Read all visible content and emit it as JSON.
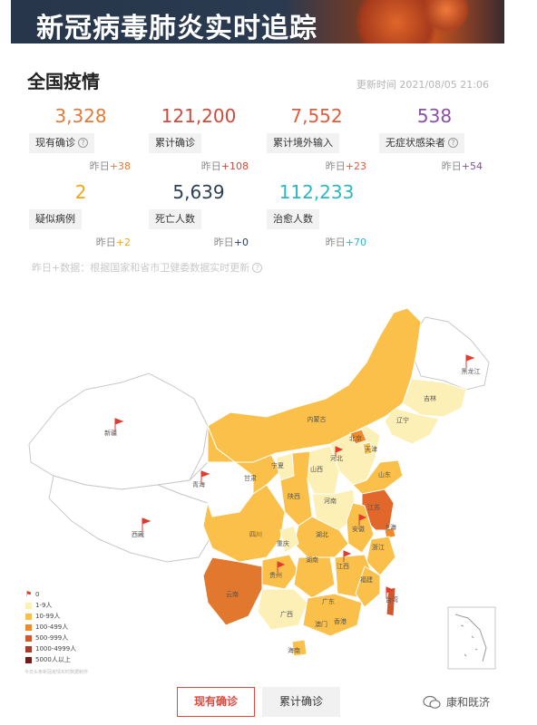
{
  "banner": {
    "title": "新冠病毒肺炎实时追踪"
  },
  "section": {
    "title": "全国疫情",
    "update_time": "更新时间 2021/08/05 21:06"
  },
  "stats": [
    {
      "value": "3,328",
      "label": "现有确诊",
      "has_help": true,
      "delta_prefix": "昨日",
      "delta": "+38",
      "color": "#e27a38"
    },
    {
      "value": "121,200",
      "label": "累计确诊",
      "has_help": false,
      "delta_prefix": "昨日",
      "delta": "+108",
      "color": "#cf4a3a"
    },
    {
      "value": "7,552",
      "label": "累计境外输入",
      "has_help": false,
      "delta_prefix": "昨日",
      "delta": "+23",
      "color": "#e35a3c"
    },
    {
      "value": "538",
      "label": "无症状感染者",
      "has_help": true,
      "delta_prefix": "昨日",
      "delta": "+54",
      "color": "#8b4fa8"
    },
    {
      "value": "2",
      "label": "疑似病例",
      "has_help": false,
      "delta_prefix": "昨日",
      "delta": "+2",
      "color": "#f0a81a"
    },
    {
      "value": "5,639",
      "label": "死亡人数",
      "has_help": false,
      "delta_prefix": "昨日",
      "delta": "+0",
      "color": "#2d3f55"
    },
    {
      "value": "112,233",
      "label": "治愈人数",
      "has_help": false,
      "delta_prefix": "昨日",
      "delta": "+70",
      "color": "#2bb7c3"
    }
  ],
  "note": "昨日+数据：根据国家和省市卫健委数据实时更新",
  "map": {
    "province_labels": [
      "黑龙江",
      "吉林",
      "辽宁",
      "内蒙古",
      "北京",
      "天津",
      "河北",
      "山西",
      "山东",
      "宁夏",
      "甘肃",
      "青海",
      "新疆",
      "西藏",
      "陕西",
      "河南",
      "江苏",
      "安徽",
      "上海",
      "湖北",
      "四川",
      "重庆",
      "浙江",
      "湖南",
      "江西",
      "贵州",
      "福建",
      "云南",
      "广西",
      "广东",
      "台湾",
      "香港",
      "澳门",
      "海南"
    ],
    "legend": [
      {
        "label": "0",
        "color": "#e23b2e",
        "flag": true
      },
      {
        "label": "1-9人",
        "color": "#fdf0b6"
      },
      {
        "label": "10-99人",
        "color": "#fbc04a"
      },
      {
        "label": "100-499人",
        "color": "#ef8a2b"
      },
      {
        "label": "500-999人",
        "color": "#d0582c"
      },
      {
        "label": "1000-4999人",
        "color": "#a8382a"
      },
      {
        "label": "5000人以上",
        "color": "#6e1d1a"
      }
    ],
    "source": "今日头条新冠疫情实时数据制作"
  },
  "tabs": {
    "active": "现有确诊",
    "inactive": "累计确诊"
  },
  "watermark": "康和既济"
}
